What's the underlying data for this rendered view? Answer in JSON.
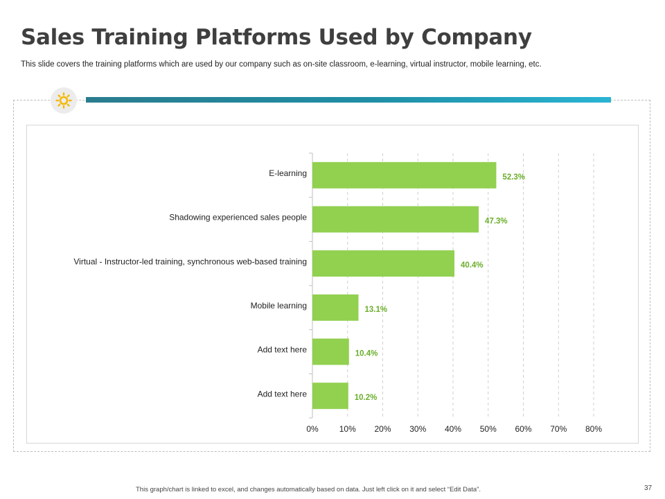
{
  "slide": {
    "title": "Sales Training Platforms Used by Company",
    "subtitle": "This slide covers the training platforms which are used by our company such as on-site classroom, e-learning, virtual instructor, mobile learning, etc.",
    "footer_note": "This graph/chart is linked to excel, and changes automatically based on data. Just left click on it and select “Edit Data”.",
    "page_number": "37",
    "icon": "sun-icon",
    "colors": {
      "title": "#3f3f3f",
      "accent_bar": "#1f8fa6",
      "bar": "#92d050",
      "value_label": "#6aae2a",
      "icon": "#f5b800"
    }
  },
  "chart_data": {
    "type": "bar",
    "orientation": "horizontal",
    "title": "",
    "xlabel": "",
    "ylabel": "",
    "categories": [
      "E-learning",
      "Shadowing experienced sales people",
      "Virtual - Instructor-led training, synchronous web-based training",
      "Mobile learning",
      "Add text here",
      "Add text here"
    ],
    "values": [
      52.3,
      47.3,
      40.4,
      13.1,
      10.4,
      10.2
    ],
    "value_labels": [
      "52.3%",
      "47.3%",
      "40.4%",
      "13.1%",
      "10.4%",
      "10.2%"
    ],
    "xlim": [
      0,
      80
    ],
    "xticks": [
      0,
      10,
      20,
      30,
      40,
      50,
      60,
      70,
      80
    ],
    "xtick_labels": [
      "0%",
      "10%",
      "20%",
      "30%",
      "40%",
      "50%",
      "60%",
      "70%",
      "80%"
    ],
    "grid": "vertical dashed",
    "legend": "none"
  }
}
